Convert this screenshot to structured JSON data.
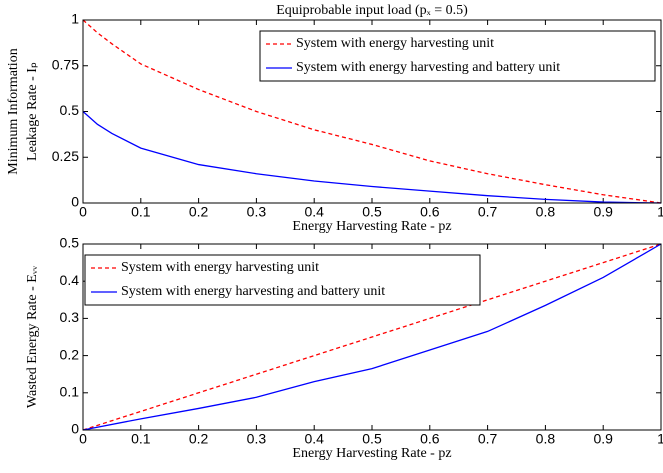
{
  "chart_data": [
    {
      "type": "line",
      "title": "Equiprobable input load (pₓ = 0.5)",
      "xlabel": "Energy Harvesting Rate - pz",
      "ylabel": [
        "Minimum Information",
        "Leakage Rate - Iₚ"
      ],
      "x": [
        0,
        0.025,
        0.05,
        0.1,
        0.2,
        0.3,
        0.4,
        0.5,
        0.6,
        0.7,
        0.8,
        0.9,
        1
      ],
      "series": [
        {
          "name": "System with energy harvesting unit",
          "color": "#ff0000",
          "linestyle": "dashed",
          "values": [
            1,
            0.93,
            0.87,
            0.76,
            0.62,
            0.5,
            0.4,
            0.32,
            0.23,
            0.16,
            0.1,
            0.045,
            0
          ]
        },
        {
          "name": "System with energy harvesting and battery unit",
          "color": "#0000ff",
          "linestyle": "solid",
          "values": [
            0.5,
            0.43,
            0.38,
            0.3,
            0.21,
            0.16,
            0.12,
            0.09,
            0.065,
            0.04,
            0.02,
            0.005,
            0
          ]
        }
      ],
      "xlim": [
        0,
        1
      ],
      "xticks": [
        0,
        0.1,
        0.2,
        0.3,
        0.4,
        0.5,
        0.6,
        0.7,
        0.8,
        0.9,
        1
      ],
      "ylim": [
        0,
        1
      ],
      "yticks": [
        0,
        0.25,
        0.5,
        0.75,
        1
      ],
      "legend": "upper right"
    },
    {
      "type": "line",
      "xlabel": "Energy Harvesting Rate - pz",
      "ylabel": [
        "Wasted Energy Rate - Eᵥᵥ"
      ],
      "x": [
        0,
        0.1,
        0.2,
        0.3,
        0.4,
        0.5,
        0.6,
        0.7,
        0.8,
        0.9,
        1
      ],
      "series": [
        {
          "name": "System with energy harvesting unit",
          "color": "#ff0000",
          "linestyle": "dashed",
          "values": [
            0,
            0.05,
            0.1,
            0.15,
            0.2,
            0.25,
            0.3,
            0.35,
            0.4,
            0.45,
            0.5
          ]
        },
        {
          "name": "System with energy harvesting and battery unit",
          "color": "#0000ff",
          "linestyle": "solid",
          "values": [
            0,
            0.03,
            0.058,
            0.088,
            0.13,
            0.165,
            0.215,
            0.265,
            0.335,
            0.41,
            0.5
          ]
        }
      ],
      "xlim": [
        0,
        1
      ],
      "xticks": [
        0,
        0.1,
        0.2,
        0.3,
        0.4,
        0.5,
        0.6,
        0.7,
        0.8,
        0.9,
        1
      ],
      "ylim": [
        0,
        0.5
      ],
      "yticks": [
        0,
        0.1,
        0.2,
        0.3,
        0.4,
        0.5
      ],
      "legend": "upper left"
    }
  ]
}
